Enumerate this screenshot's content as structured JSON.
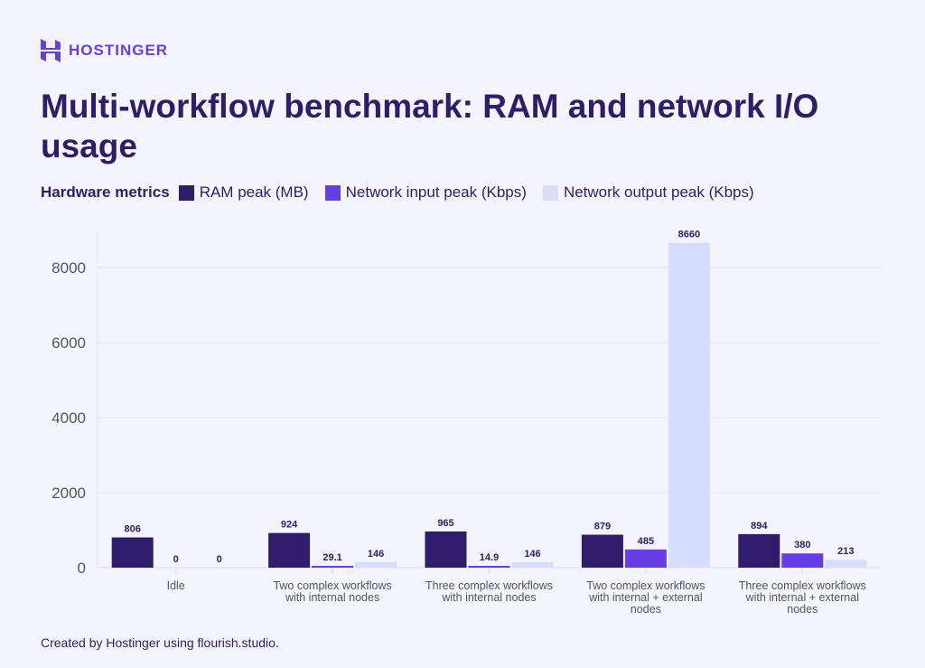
{
  "brand": {
    "name": "HOSTINGER"
  },
  "title": "Multi-workflow benchmark: RAM and network I/O usage",
  "footer": "Created by Hostinger using flourish.studio.",
  "colors": {
    "background": "#f4f4fe",
    "title": "#2f1c6a",
    "ram": "#2f1c6a",
    "net_in": "#673de6",
    "net_out": "#d5dffd"
  },
  "chart_data": {
    "type": "bar",
    "title": "Multi-workflow benchmark: RAM and network I/O usage",
    "legend_title": "Hardware metrics",
    "legend_position": "top-left",
    "categories": [
      "Idle",
      "Two complex workflows with internal nodes",
      "Three complex workflows with internal nodes",
      "Two complex workflows with internal + external nodes",
      "Three complex workflows with internal + external nodes"
    ],
    "category_lines": [
      [
        "Idle"
      ],
      [
        "Two complex workflows",
        "with internal nodes"
      ],
      [
        "Three complex workflows",
        "with internal nodes"
      ],
      [
        "Two complex workflows",
        "with internal + external",
        "nodes"
      ],
      [
        "Three complex workflows",
        "with internal + external",
        "nodes"
      ]
    ],
    "series": [
      {
        "name": "RAM peak (MB)",
        "values": [
          806,
          924,
          965,
          879,
          894
        ],
        "labels": [
          "806",
          "924",
          "965",
          "879",
          "894"
        ]
      },
      {
        "name": "Network input peak (Kbps)",
        "values": [
          0,
          29.1,
          14.9,
          485,
          380
        ],
        "labels": [
          "0",
          "29.1",
          "14.9",
          "485",
          "380"
        ]
      },
      {
        "name": "Network output peak (Kbps)",
        "values": [
          0,
          146,
          146,
          8660,
          213
        ],
        "labels": [
          "0",
          "146",
          "146",
          "8660",
          "213"
        ]
      }
    ],
    "yticks": [
      0,
      2000,
      4000,
      6000,
      8000
    ],
    "ylim": [
      0,
      9000
    ],
    "grid": true
  }
}
